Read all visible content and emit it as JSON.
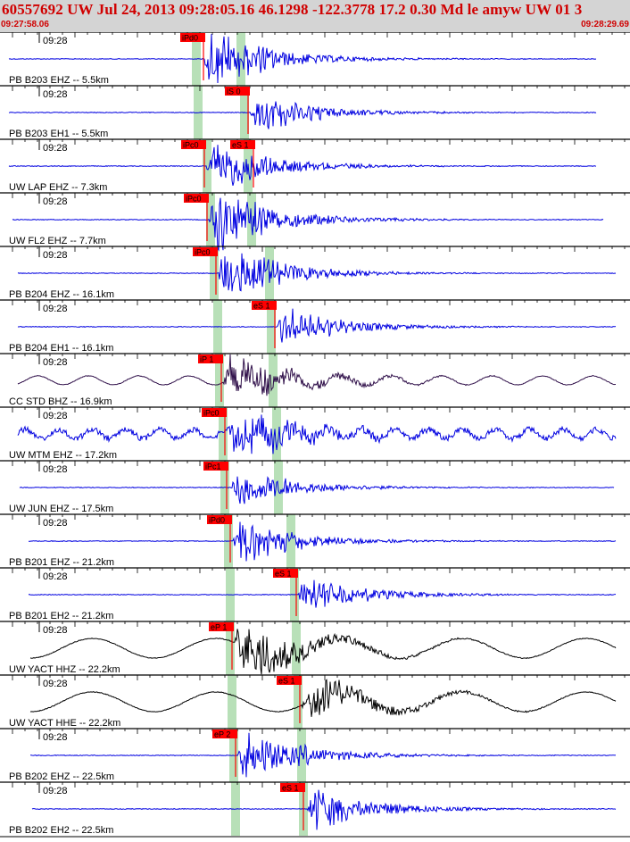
{
  "header": {
    "title": "60557692 UW Jul 24, 2013 09:28:05.16   46.1298 -122.3778 17.2 0.30 Md le amyw UW 01    3",
    "time_start": "09:27:58.06",
    "time_end": "09:28:29.69"
  },
  "colors": {
    "header_bg": "#d4d4d4",
    "header_text": "#d00000",
    "trace_blue": "#0000e0",
    "trace_purple": "#30104a",
    "trace_black": "#000000",
    "pick_box": "#ff0000",
    "window_band": "#b8e0b8",
    "separator": "#000000"
  },
  "traces": [
    {
      "station": "PB B203 EHZ -- 5.5km",
      "time_label": "09:28",
      "color": "blue",
      "picks": [
        "iPd0"
      ]
    },
    {
      "station": "PB B203 EH1 -- 5.5km",
      "time_label": "09:28",
      "color": "blue",
      "picks": [
        "iS 0"
      ]
    },
    {
      "station": "UW LAP EHZ -- 7.3km",
      "time_label": "09:28",
      "color": "blue",
      "picks": [
        "iPc0",
        "eS 1"
      ]
    },
    {
      "station": "UW FL2 EHZ -- 7.7km",
      "time_label": "09:28",
      "color": "blue",
      "picks": [
        "iPc0"
      ]
    },
    {
      "station": "PB B204 EHZ -- 16.1km",
      "time_label": "09:28",
      "color": "blue",
      "picks": [
        "iPc0"
      ]
    },
    {
      "station": "PB B204 EH1 -- 16.1km",
      "time_label": "09:28",
      "color": "blue",
      "picks": [
        "eS 1"
      ]
    },
    {
      "station": "CC STD BHZ -- 16.9km",
      "time_label": "09:28",
      "color": "purple",
      "picks": [
        "iP 1"
      ]
    },
    {
      "station": "UW MTM EHZ -- 17.2km",
      "time_label": "09:28",
      "color": "blue",
      "picks": [
        "iPc0"
      ]
    },
    {
      "station": "UW JUN EHZ -- 17.5km",
      "time_label": "09:28",
      "color": "blue",
      "picks": [
        "iPc1"
      ]
    },
    {
      "station": "PB B201 EHZ -- 21.2km",
      "time_label": "09:28",
      "color": "blue",
      "picks": [
        "iPd0"
      ]
    },
    {
      "station": "PB B201 EH2 -- 21.2km",
      "time_label": "09:28",
      "color": "blue",
      "picks": [
        "eS 1"
      ]
    },
    {
      "station": "UW YACT HHZ -- 22.2km",
      "time_label": "09:28",
      "color": "black",
      "picks": [
        "eP 1"
      ]
    },
    {
      "station": "UW YACT HHE -- 22.2km",
      "time_label": "09:28",
      "color": "black",
      "picks": [
        "eS 1"
      ]
    },
    {
      "station": "PB B202 EHZ -- 22.5km",
      "time_label": "09:28",
      "color": "blue",
      "picks": [
        "eP 2"
      ]
    },
    {
      "station": "PB B202 EH2 -- 22.5km",
      "time_label": "09:28",
      "color": "blue",
      "picks": [
        "eS 1"
      ]
    }
  ]
}
